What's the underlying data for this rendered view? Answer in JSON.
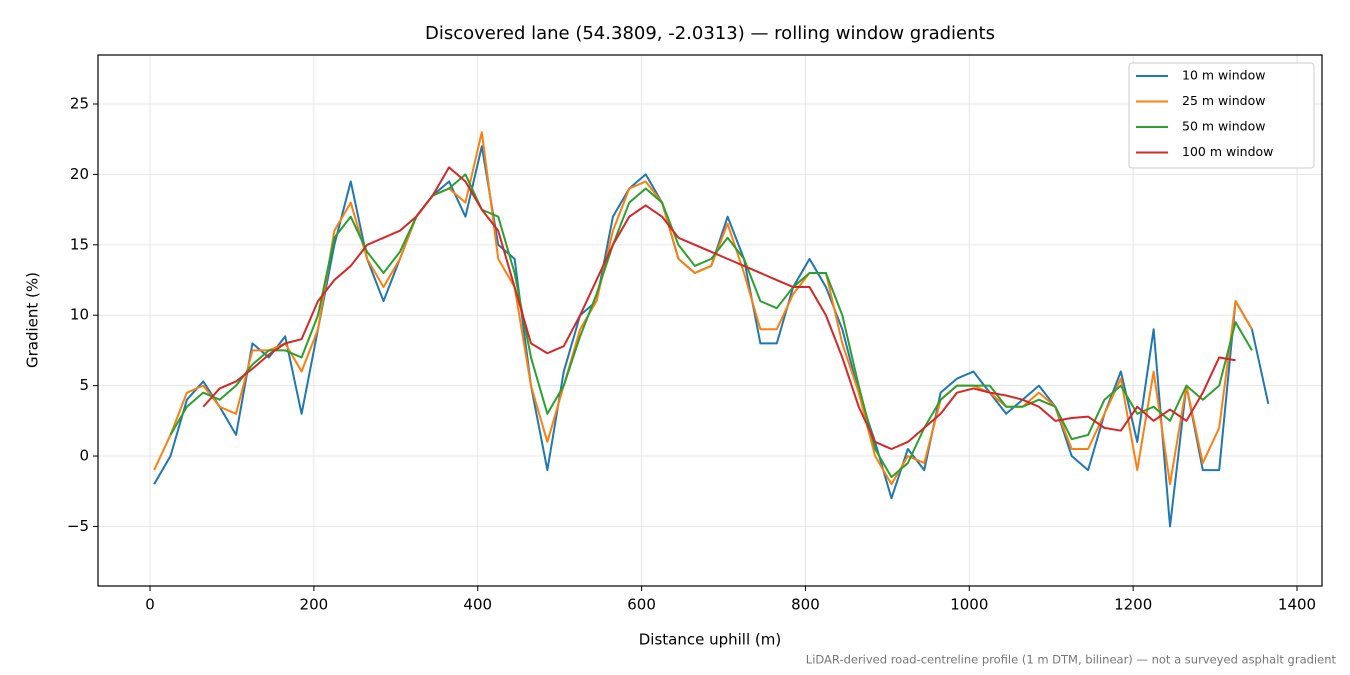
{
  "chart_data": {
    "type": "line",
    "title": "Discovered lane (54.3809, -2.0313) — rolling window gradients",
    "x_label": "Distance uphill (m)",
    "y_label": "Gradient (%)",
    "footnote": "LiDAR-derived road-centreline profile (1 m DTM, bilinear) — not a surveyed asphalt gradient",
    "x": [
      5,
      25,
      45,
      65,
      85,
      105,
      125,
      145,
      165,
      185,
      205,
      225,
      245,
      265,
      285,
      305,
      325,
      345,
      365,
      385,
      405,
      425,
      445,
      465,
      485,
      505,
      525,
      545,
      565,
      585,
      605,
      625,
      645,
      665,
      685,
      705,
      725,
      745,
      765,
      785,
      805,
      825,
      845,
      865,
      885,
      905,
      925,
      945,
      965,
      985,
      1005,
      1025,
      1045,
      1065,
      1085,
      1105,
      1125,
      1145,
      1165,
      1185,
      1205,
      1225,
      1245,
      1265,
      1285,
      1305,
      1325,
      1345,
      1365
    ],
    "series": [
      {
        "name": "10 m window",
        "color": "#1f77b4",
        "values": [
          -2,
          0,
          4,
          5.3,
          3.5,
          1.5,
          8,
          7,
          8.5,
          3,
          9,
          15,
          19.5,
          14,
          11,
          14,
          17,
          18.5,
          19.5,
          17,
          22,
          15,
          14,
          5,
          -1,
          6,
          10,
          11,
          17,
          19,
          20,
          18,
          14,
          13,
          13.5,
          17,
          14,
          8,
          8,
          12,
          14,
          12,
          9,
          4.5,
          1,
          -3,
          0.5,
          -1,
          4.5,
          5.5,
          6,
          4.5,
          3,
          4,
          5,
          3.5,
          0,
          -1,
          3,
          6,
          1,
          9,
          -5,
          5,
          -1,
          -1,
          11,
          9,
          3.7
        ]
      },
      {
        "name": "25 m window",
        "color": "#ff7f0e",
        "values": [
          -1,
          1.5,
          4.5,
          5,
          3.5,
          3,
          7.5,
          7.5,
          8,
          6,
          9,
          16,
          18,
          14,
          12,
          14,
          17,
          18.5,
          19,
          18,
          23,
          14,
          12,
          5,
          1,
          5,
          9,
          11,
          16,
          19,
          19.5,
          18,
          14,
          13,
          13.5,
          16.5,
          13,
          9,
          9,
          11.5,
          13,
          13,
          8,
          4.5,
          0,
          -2,
          0,
          -0.5,
          4,
          5,
          5,
          4.5,
          3.5,
          3.5,
          4.5,
          3.5,
          0.5,
          0.5,
          3,
          5.5,
          -1,
          6,
          -2,
          5,
          -0.5,
          2,
          11,
          9,
          null
        ]
      },
      {
        "name": "50 m window",
        "color": "#2ca02c",
        "values": [
          null,
          1.5,
          3.5,
          4.5,
          4,
          5,
          6.5,
          7.5,
          7.5,
          7,
          10,
          15.5,
          17,
          14.5,
          13,
          14.5,
          17,
          18.5,
          19,
          20,
          17.5,
          17,
          13,
          7,
          3,
          5,
          8.5,
          11.5,
          15,
          18,
          19,
          18,
          15,
          13.5,
          14,
          15.5,
          14,
          11,
          10.5,
          12,
          13,
          13,
          10,
          5,
          0.5,
          -1.5,
          -0.5,
          2,
          4,
          5,
          5,
          5,
          3.5,
          3.5,
          4,
          3.5,
          1.2,
          1.5,
          4,
          5,
          3,
          3.5,
          2.5,
          5,
          4,
          5,
          9.5,
          7.5,
          null
        ]
      },
      {
        "name": "100 m window",
        "color": "#d62728",
        "values": [
          null,
          null,
          null,
          3.5,
          4.8,
          5.3,
          6.2,
          7.2,
          8,
          8.3,
          11,
          12.5,
          13.5,
          15,
          15.5,
          16,
          17,
          18.5,
          20.5,
          19.5,
          17.5,
          16,
          12,
          8,
          7.3,
          7.8,
          10,
          12.5,
          15,
          17,
          17.8,
          17,
          15.5,
          15,
          14.5,
          14,
          13.5,
          13,
          12.5,
          12,
          12,
          10,
          7,
          3.5,
          1,
          0.5,
          1,
          2,
          3,
          4.5,
          4.8,
          4.5,
          4.3,
          4,
          3.5,
          2.5,
          2.7,
          2.8,
          2,
          1.8,
          3.5,
          2.5,
          3.3,
          2.5,
          4.5,
          7,
          6.8,
          null,
          null
        ]
      }
    ],
    "xlim": [
      -63.5,
      1430.5
    ],
    "ylim": [
      -9.23,
      28.48
    ],
    "xticks": [
      0,
      200,
      400,
      600,
      800,
      1000,
      1200,
      1400
    ],
    "yticks": [
      {
        "value": -5,
        "label": "−5"
      },
      0,
      5,
      10,
      15,
      20,
      25
    ],
    "grid": true,
    "legend": "upper right"
  }
}
